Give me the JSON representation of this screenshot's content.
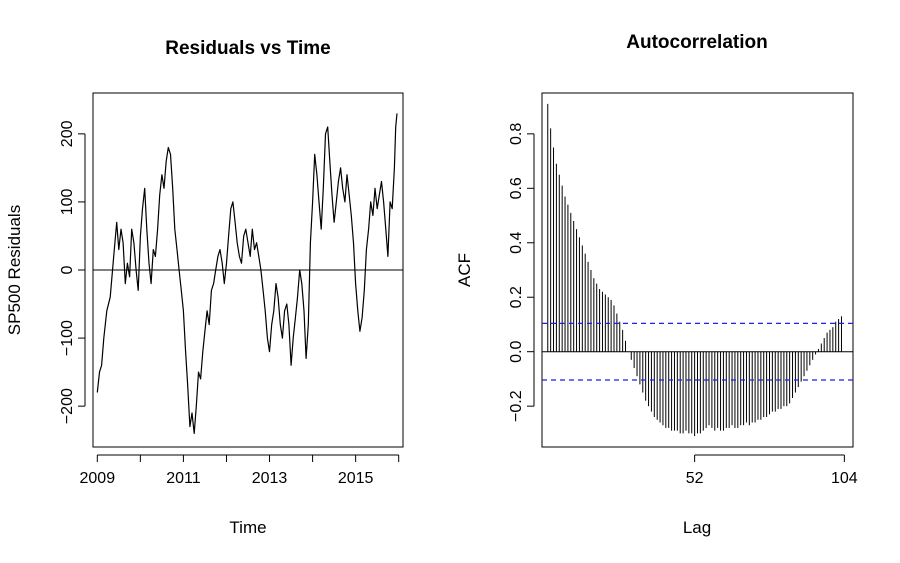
{
  "chart_data": [
    {
      "type": "line",
      "title": "Residuals vs Time",
      "xlabel": "Time",
      "ylabel": "SP500 Residuals",
      "xlim": [
        2008.9,
        2016.1
      ],
      "ylim": [
        -260,
        260
      ],
      "xticks": [
        2009,
        2010,
        2011,
        2012,
        2013,
        2014,
        2015,
        2016
      ],
      "xtick_labels": [
        "2009",
        "",
        "2011",
        "",
        "2013",
        "",
        "2015",
        ""
      ],
      "yticks": [
        -200,
        -100,
        0,
        100,
        200
      ],
      "ytick_labels": [
        "−200",
        "−100",
        "0",
        "100",
        "200"
      ],
      "hline": 0,
      "grid": false,
      "series": [
        {
          "x": [
            2009.0,
            2009.05,
            2009.1,
            2009.15,
            2009.22,
            2009.3,
            2009.38,
            2009.45,
            2009.5,
            2009.55,
            2009.6,
            2009.65,
            2009.7,
            2009.75,
            2009.8,
            2009.85,
            2009.9,
            2009.95,
            2010.0,
            2010.05,
            2010.1,
            2010.15,
            2010.2,
            2010.25,
            2010.3,
            2010.35,
            2010.4,
            2010.45,
            2010.5,
            2010.55,
            2010.6,
            2010.65,
            2010.7,
            2010.75,
            2010.8,
            2010.85,
            2010.9,
            2010.95,
            2011.0,
            2011.05,
            2011.1,
            2011.15,
            2011.2,
            2011.25,
            2011.3,
            2011.35,
            2011.4,
            2011.45,
            2011.5,
            2011.55,
            2011.6,
            2011.65,
            2011.7,
            2011.75,
            2011.8,
            2011.85,
            2011.9,
            2011.95,
            2012.0,
            2012.05,
            2012.1,
            2012.15,
            2012.2,
            2012.25,
            2012.3,
            2012.35,
            2012.4,
            2012.45,
            2012.5,
            2012.55,
            2012.6,
            2012.65,
            2012.7,
            2012.75,
            2012.8,
            2012.85,
            2012.9,
            2012.95,
            2013.0,
            2013.05,
            2013.1,
            2013.15,
            2013.2,
            2013.25,
            2013.3,
            2013.35,
            2013.4,
            2013.45,
            2013.5,
            2013.55,
            2013.6,
            2013.65,
            2013.7,
            2013.75,
            2013.8,
            2013.85,
            2013.9,
            2013.95,
            2014.0,
            2014.05,
            2014.1,
            2014.15,
            2014.2,
            2014.25,
            2014.3,
            2014.35,
            2014.4,
            2014.45,
            2014.5,
            2014.55,
            2014.6,
            2014.65,
            2014.7,
            2014.75,
            2014.8,
            2014.85,
            2014.9,
            2014.95,
            2015.0,
            2015.05,
            2015.1,
            2015.15,
            2015.2,
            2015.25,
            2015.3,
            2015.35,
            2015.4,
            2015.45,
            2015.5,
            2015.55,
            2015.6,
            2015.65,
            2015.7,
            2015.75,
            2015.8,
            2015.85,
            2015.9,
            2015.93,
            2015.96
          ],
          "y": [
            -180,
            -150,
            -140,
            -100,
            -60,
            -40,
            20,
            70,
            30,
            60,
            40,
            -20,
            10,
            -10,
            60,
            40,
            0,
            -30,
            50,
            90,
            120,
            60,
            10,
            -20,
            30,
            20,
            60,
            110,
            140,
            120,
            160,
            180,
            170,
            120,
            60,
            30,
            0,
            -30,
            -60,
            -120,
            -170,
            -230,
            -210,
            -240,
            -200,
            -150,
            -160,
            -120,
            -90,
            -60,
            -80,
            -30,
            -20,
            0,
            20,
            30,
            10,
            -20,
            10,
            50,
            90,
            100,
            70,
            40,
            20,
            10,
            50,
            60,
            40,
            20,
            60,
            30,
            40,
            20,
            0,
            -30,
            -60,
            -100,
            -120,
            -80,
            -60,
            -20,
            -40,
            -80,
            -100,
            -60,
            -50,
            -80,
            -140,
            -100,
            -70,
            -40,
            0,
            -20,
            -60,
            -130,
            -80,
            40,
            100,
            170,
            140,
            100,
            60,
            120,
            200,
            210,
            160,
            110,
            70,
            100,
            130,
            150,
            120,
            100,
            140,
            110,
            80,
            40,
            -20,
            -60,
            -90,
            -70,
            -30,
            30,
            60,
            100,
            80,
            120,
            90,
            110,
            130,
            100,
            60,
            20,
            100,
            90,
            150,
            210,
            230
          ]
        }
      ]
    },
    {
      "type": "bar",
      "title": "Autocorrelation",
      "xlabel": "Lag",
      "ylabel": "ACF",
      "xlim": [
        -1,
        107
      ],
      "ylim": [
        -0.35,
        0.95
      ],
      "xticks": [
        52,
        104
      ],
      "xtick_labels": [
        "52",
        "104"
      ],
      "yticks": [
        -0.2,
        0.0,
        0.2,
        0.4,
        0.6,
        0.8
      ],
      "ytick_labels": [
        "−0.2",
        "0.0",
        "0.2",
        "0.4",
        "0.6",
        "0.8"
      ],
      "confidence_band": [
        0.104,
        -0.104
      ],
      "band_color": "#1f1fe6",
      "hline": 0,
      "grid": false,
      "lag_start": 1,
      "values": [
        0.91,
        0.82,
        0.75,
        0.69,
        0.65,
        0.61,
        0.57,
        0.54,
        0.51,
        0.48,
        0.45,
        0.42,
        0.39,
        0.36,
        0.33,
        0.3,
        0.27,
        0.25,
        0.23,
        0.22,
        0.21,
        0.2,
        0.19,
        0.17,
        0.14,
        0.11,
        0.08,
        0.04,
        0.0,
        -0.03,
        -0.06,
        -0.09,
        -0.12,
        -0.15,
        -0.18,
        -0.2,
        -0.22,
        -0.24,
        -0.25,
        -0.26,
        -0.27,
        -0.28,
        -0.28,
        -0.29,
        -0.29,
        -0.29,
        -0.3,
        -0.3,
        -0.29,
        -0.3,
        -0.3,
        -0.31,
        -0.3,
        -0.3,
        -0.29,
        -0.28,
        -0.27,
        -0.28,
        -0.29,
        -0.28,
        -0.29,
        -0.29,
        -0.28,
        -0.28,
        -0.27,
        -0.28,
        -0.28,
        -0.27,
        -0.27,
        -0.26,
        -0.27,
        -0.26,
        -0.26,
        -0.25,
        -0.25,
        -0.24,
        -0.24,
        -0.23,
        -0.22,
        -0.22,
        -0.21,
        -0.21,
        -0.2,
        -0.2,
        -0.19,
        -0.17,
        -0.15,
        -0.13,
        -0.11,
        -0.09,
        -0.07,
        -0.05,
        -0.03,
        -0.01,
        0.01,
        0.03,
        0.05,
        0.07,
        0.08,
        0.09,
        0.11,
        0.12,
        0.13
      ]
    }
  ]
}
